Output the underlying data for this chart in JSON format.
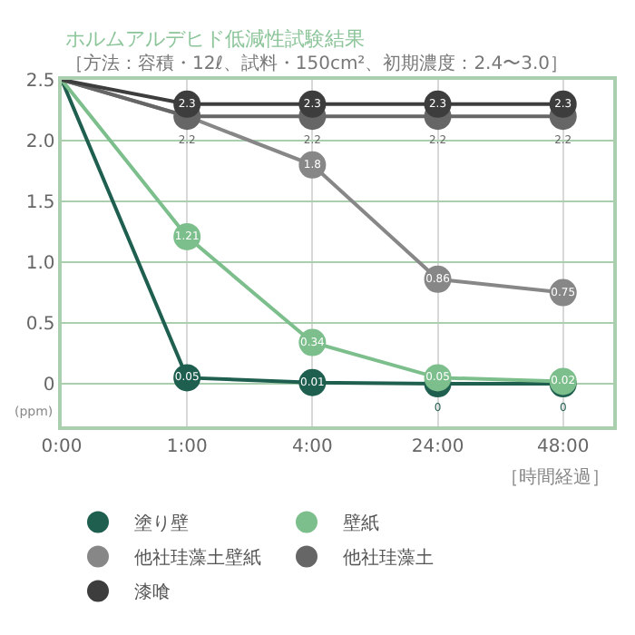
{
  "chart_data": {
    "type": "line",
    "title": "ホルムアルデヒド低減性試験結果",
    "subtitle": "［方法：容積・12ℓ、試料・150cm²、初期濃度：2.4〜3.0］",
    "xlabel": "［時間経過］",
    "ylabel": "(ppm)",
    "categories": [
      "0:00",
      "1:00",
      "4:00",
      "24:00",
      "48:00"
    ],
    "series": [
      {
        "name": "塗り壁",
        "color": "#1f5f4f",
        "values": [
          2.5,
          0.05,
          0.01,
          0,
          0
        ],
        "value_labels": [
          null,
          "0.05",
          "0.01",
          "0",
          "0"
        ]
      },
      {
        "name": "壁紙",
        "color": "#7dbf8c",
        "values": [
          2.5,
          1.21,
          0.34,
          0.05,
          0.02
        ],
        "value_labels": [
          null,
          "1.21",
          "0.34",
          "0.05",
          "0.02"
        ]
      },
      {
        "name": "他社珪藻土壁紙",
        "color": "#878787",
        "values": [
          2.5,
          2.2,
          1.8,
          0.86,
          0.75
        ],
        "value_labels": [
          null,
          null,
          "1.8",
          "0.86",
          "0.75"
        ]
      },
      {
        "name": "他社珪藻土",
        "color": "#666666",
        "values": [
          2.5,
          2.2,
          2.2,
          2.2,
          2.2
        ],
        "value_labels": [
          null,
          "2.2",
          "2.2",
          "2.2",
          "2.2"
        ]
      },
      {
        "name": "漆喰",
        "color": "#3d3d3d",
        "values": [
          2.5,
          2.3,
          2.3,
          2.3,
          2.3
        ],
        "value_labels": [
          null,
          "2.3",
          "2.3",
          "2.3",
          "2.3"
        ]
      }
    ],
    "ylim": [
      -0.35,
      2.5
    ],
    "yticks": [
      0,
      0.5,
      {
        "value": 1.0,
        "label": "1.0"
      },
      1.5,
      {
        "value": 2.0,
        "label": "2.0"
      },
      2.5
    ],
    "grid": true,
    "legend": "bottom",
    "marker": "circle",
    "line_style": "solid"
  }
}
